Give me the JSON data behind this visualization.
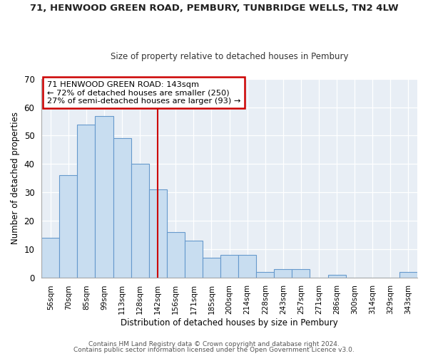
{
  "title_line1": "71, HENWOOD GREEN ROAD, PEMBURY, TUNBRIDGE WELLS, TN2 4LW",
  "title_line2": "Size of property relative to detached houses in Pembury",
  "xlabel": "Distribution of detached houses by size in Pembury",
  "ylabel": "Number of detached properties",
  "bar_labels": [
    "56sqm",
    "70sqm",
    "85sqm",
    "99sqm",
    "113sqm",
    "128sqm",
    "142sqm",
    "156sqm",
    "171sqm",
    "185sqm",
    "200sqm",
    "214sqm",
    "228sqm",
    "243sqm",
    "257sqm",
    "271sqm",
    "286sqm",
    "300sqm",
    "314sqm",
    "329sqm",
    "343sqm"
  ],
  "bar_heights": [
    14,
    36,
    54,
    57,
    49,
    40,
    31,
    16,
    13,
    7,
    8,
    8,
    2,
    3,
    3,
    0,
    1,
    0,
    0,
    0,
    2
  ],
  "bar_color": "#c8ddf0",
  "bar_edge_color": "#6699cc",
  "vline_x_index": 6,
  "vline_color": "#cc0000",
  "annotation_title": "71 HENWOOD GREEN ROAD: 143sqm",
  "annotation_line1": "← 72% of detached houses are smaller (250)",
  "annotation_line2": "27% of semi-detached houses are larger (93) →",
  "annotation_box_color": "#ffffff",
  "annotation_box_edge": "#cc0000",
  "ylim": [
    0,
    70
  ],
  "plot_bg_color": "#e8eef5",
  "grid_color": "#ffffff",
  "footer1": "Contains HM Land Registry data © Crown copyright and database right 2024.",
  "footer2": "Contains public sector information licensed under the Open Government Licence v3.0."
}
